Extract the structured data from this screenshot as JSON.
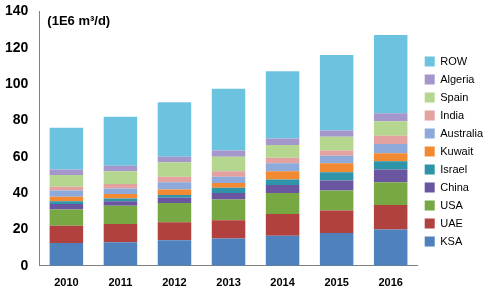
{
  "chart_data": {
    "type": "bar",
    "stacked": true,
    "annotation": "(1E6 m³/d)",
    "categories": [
      "2010",
      "2011",
      "2012",
      "2013",
      "2014",
      "2015",
      "2016"
    ],
    "series": [
      {
        "name": "KSA",
        "color": "#4f81bd",
        "values": [
          12.5,
          13,
          14,
          15,
          16.5,
          18,
          20
        ]
      },
      {
        "name": "UAE",
        "color": "#b0413e",
        "values": [
          9.5,
          10,
          10,
          10,
          12,
          12.5,
          13.5
        ]
      },
      {
        "name": "USA",
        "color": "#77a844",
        "values": [
          9,
          10,
          10.5,
          11.5,
          11.5,
          11,
          12.5
        ]
      },
      {
        "name": "China",
        "color": "#6a55a0",
        "values": [
          3,
          2.5,
          3,
          3.5,
          4.5,
          5.5,
          7
        ]
      },
      {
        "name": "Israel",
        "color": "#2e95a8",
        "values": [
          1.5,
          1.5,
          1.5,
          3,
          3,
          4.5,
          4.5
        ]
      },
      {
        "name": "Kuwait",
        "color": "#f28a34",
        "values": [
          2.5,
          2.5,
          3,
          2.5,
          4.5,
          5,
          4.5
        ]
      },
      {
        "name": "Australia",
        "color": "#8eaadb",
        "values": [
          3.5,
          3,
          4,
          3.5,
          4.5,
          4,
          5
        ]
      },
      {
        "name": "India",
        "color": "#e3a1a0",
        "values": [
          2,
          2.5,
          3,
          3,
          3,
          3,
          4.5
        ]
      },
      {
        "name": "Spain",
        "color": "#b5d68e",
        "values": [
          6.5,
          7,
          8,
          8,
          7,
          7.5,
          8
        ]
      },
      {
        "name": "Algeria",
        "color": "#a596cc",
        "values": [
          3,
          3,
          3,
          3.5,
          3.5,
          3.5,
          4.5
        ]
      },
      {
        "name": "ROW",
        "color": "#6cc3df",
        "values": [
          23,
          27,
          30,
          34,
          37,
          41.5,
          43
        ]
      }
    ],
    "ylim": [
      0,
      140
    ],
    "yticks": [
      0,
      20,
      40,
      60,
      80,
      100,
      120,
      140
    ],
    "grid": false,
    "legend": "right"
  }
}
